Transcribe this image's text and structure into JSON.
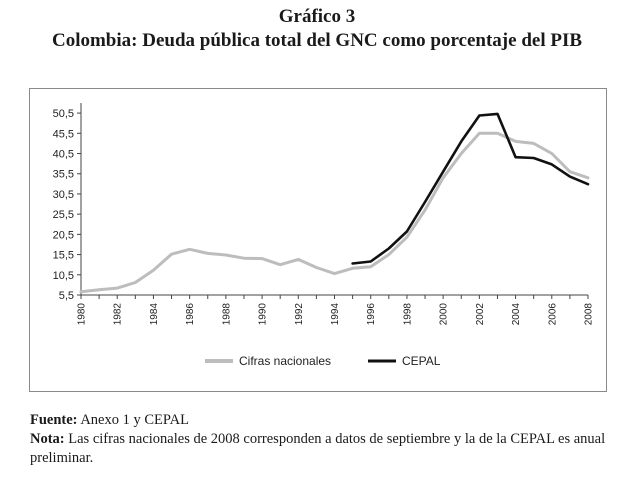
{
  "heading": {
    "title": "Gráfico 3",
    "subtitle": "Colombia: Deuda pública total del GNC como porcentaje del PIB"
  },
  "chart_data": {
    "type": "line",
    "title": "Colombia: Deuda pública total del GNC como porcentaje del PIB",
    "xlabel": "",
    "ylabel": "",
    "ylim": [
      5.5,
      53
    ],
    "yticks": [
      "5,5",
      "10,5",
      "15,5",
      "20,5",
      "25,5",
      "30,5",
      "35,5",
      "40,5",
      "45,5",
      "50,5"
    ],
    "ytick_values": [
      5.5,
      10.5,
      15.5,
      20.5,
      25.5,
      30.5,
      35.5,
      40.5,
      45.5,
      50.5
    ],
    "xticks": [
      "1980",
      "1982",
      "1984",
      "1986",
      "1988",
      "1990",
      "1992",
      "1994",
      "1996",
      "1998",
      "2000",
      "2002",
      "2004",
      "2006",
      "2008"
    ],
    "xlim": [
      1980,
      2008
    ],
    "grid": false,
    "legend_position": "bottom",
    "series": [
      {
        "name": "Cifras nacionales",
        "color": "#bdbdbd",
        "x": [
          1980,
          1981,
          1982,
          1983,
          1984,
          1985,
          1986,
          1987,
          1988,
          1989,
          1990,
          1991,
          1992,
          1993,
          1994,
          1995,
          1996,
          1997,
          1998,
          1999,
          2000,
          2001,
          2002,
          2003,
          2004,
          2005,
          2006,
          2007,
          2008
        ],
        "values": [
          6.3,
          6.8,
          7.2,
          8.6,
          11.6,
          15.6,
          16.8,
          15.8,
          15.4,
          14.6,
          14.5,
          13.0,
          14.3,
          12.3,
          10.8,
          12.1,
          12.5,
          15.5,
          19.8,
          26.5,
          34.5,
          40.5,
          45.5,
          45.5,
          43.5,
          43.0,
          40.5,
          36.0,
          34.5
        ]
      },
      {
        "name": "CEPAL",
        "color": "#111111",
        "x": [
          1995,
          1996,
          1997,
          1998,
          1999,
          2000,
          2001,
          2002,
          2003,
          2004,
          2005,
          2006,
          2007,
          2008
        ],
        "values": [
          13.3,
          13.8,
          17.0,
          21.2,
          28.5,
          36.0,
          43.5,
          49.9,
          50.3,
          39.6,
          39.4,
          37.8,
          34.8,
          32.9
        ]
      }
    ]
  },
  "notes": {
    "source_label": "Fuente:",
    "source_text": " Anexo 1 y CEPAL",
    "note_label": "Nota:",
    "note_text": " Las cifras nacionales de 2008 corresponden a datos de septiembre y la de la CEPAL es anual preliminar."
  }
}
